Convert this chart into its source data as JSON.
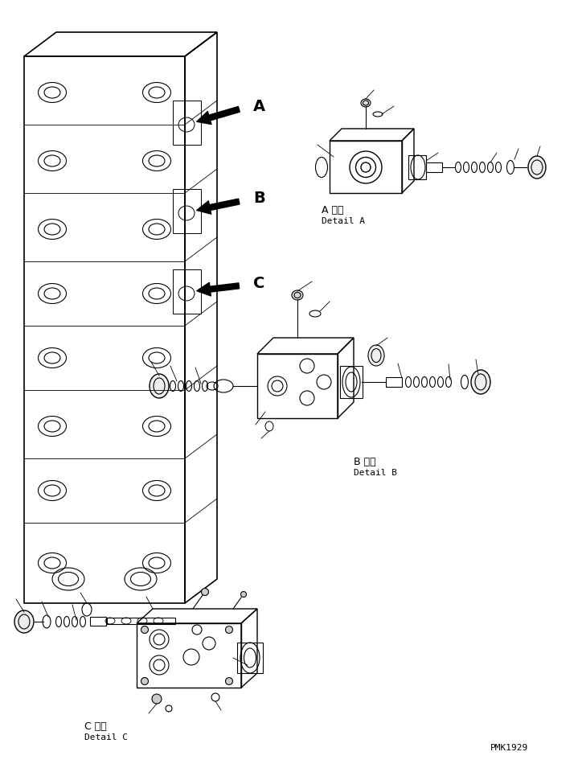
{
  "title": "",
  "background_color": "#ffffff",
  "line_color": "#000000",
  "label_A_detail": "A 詳細",
  "label_A_detail2": "Detail A",
  "label_B_detail": "B 詳細",
  "label_B_detail2": "Detail B",
  "label_C_detail": "C 詳細",
  "label_C_detail2": "Detail C",
  "label_A": "A",
  "label_B": "B",
  "label_C": "C",
  "watermark": "PMK1929",
  "fig_width": 7.29,
  "fig_height": 9.5,
  "dpi": 100
}
